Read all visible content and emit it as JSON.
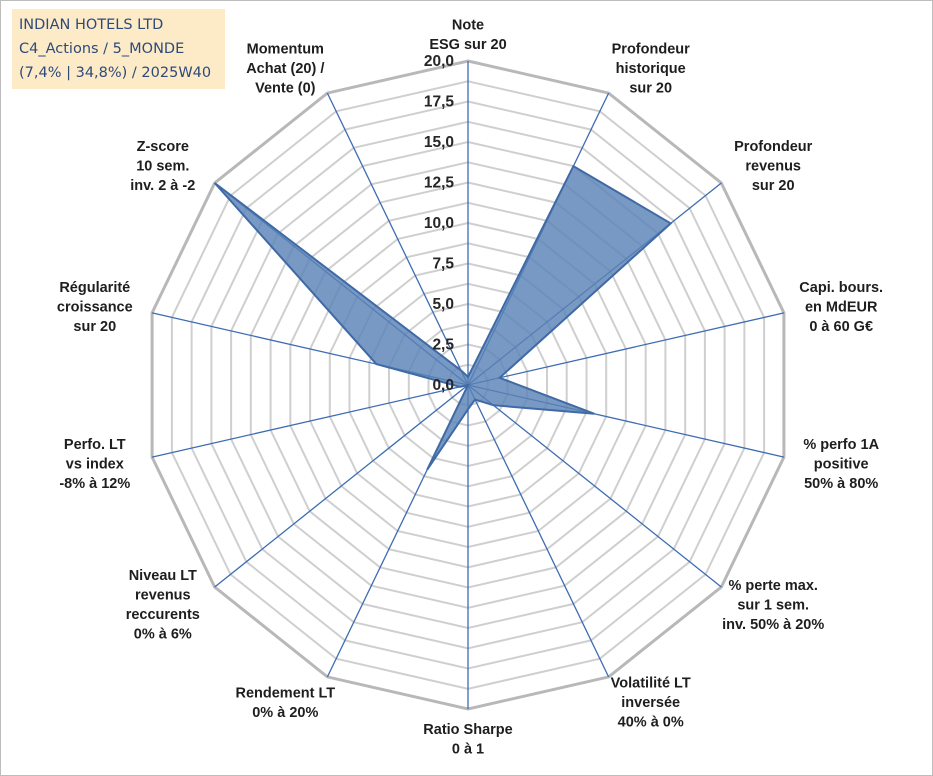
{
  "info": {
    "line1": "INDIAN HOTELS LTD",
    "line2": "C4_Actions / 5_MONDE",
    "line3": "(7,4% | 34,8%) / 2025W40"
  },
  "chart_data": {
    "type": "radar",
    "rmax": 20,
    "ticks": [
      "0,0",
      "2,5",
      "5,0",
      "7,5",
      "10,0",
      "12,5",
      "15,0",
      "17,5",
      "20,0"
    ],
    "tick_values": [
      0,
      2.5,
      5,
      7.5,
      10,
      12.5,
      15,
      17.5,
      20
    ],
    "grid": true,
    "series_color": "#5a82b6",
    "series_stroke": "#3f6aa6",
    "axes": [
      {
        "label": [
          "Note",
          "ESG sur 20"
        ],
        "value": 0.5
      },
      {
        "label": [
          "Profondeur",
          "historique",
          "sur 20"
        ],
        "value": 15
      },
      {
        "label": [
          "Profondeur",
          "revenus",
          "sur 20"
        ],
        "value": 16
      },
      {
        "label": [
          "Capi. bours.",
          "en MdEUR",
          "0 à 60 G€"
        ],
        "value": 2
      },
      {
        "label": [
          "% perfo 1A",
          "positive",
          "50% à 80%"
        ],
        "value": 8
      },
      {
        "label": [
          "% perte max.",
          "sur 1 sem.",
          "inv. 50% à 20%"
        ],
        "value": 2
      },
      {
        "label": [
          "Volatilité LT",
          "inversée",
          "40% à 0%"
        ],
        "value": 1
      },
      {
        "label": [
          "Ratio Sharpe",
          "0 à 1"
        ],
        "value": 1.5
      },
      {
        "label": [
          "Rendement LT",
          "0% à 20%"
        ],
        "value": 5.8
      },
      {
        "label": [
          "Niveau LT",
          "revenus",
          "reccurents",
          "0% à 6%"
        ],
        "value": 0
      },
      {
        "label": [
          "Perfo. LT",
          "vs index",
          "-8% à 12%"
        ],
        "value": 0.5
      },
      {
        "label": [
          "Régularité",
          "croissance",
          "sur 20"
        ],
        "value": 5.8
      },
      {
        "label": [
          "Z-score",
          "10 sem.",
          "inv. 2 à -2"
        ],
        "value": 20
      },
      {
        "label": [
          "Momentum",
          "Achat (20) /",
          "Vente (0)"
        ],
        "value": 1
      }
    ]
  }
}
